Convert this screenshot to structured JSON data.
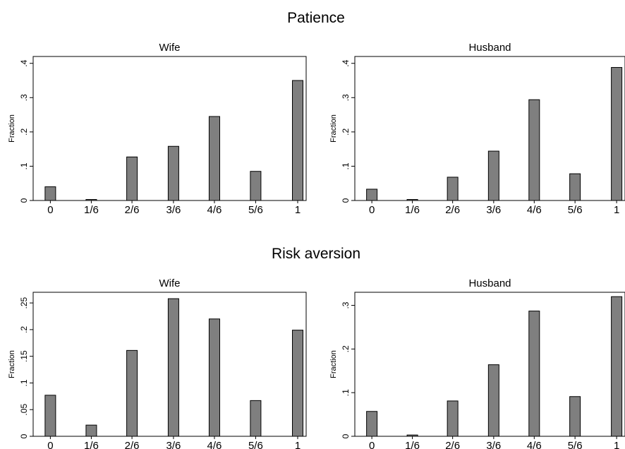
{
  "groups": [
    {
      "title": "Patience"
    },
    {
      "title": "Risk aversion"
    }
  ],
  "colors": {
    "bar_fill": "#7f7f7f",
    "bar_stroke": "#000000",
    "background": "#ffffff"
  },
  "chart_data": [
    {
      "type": "bar",
      "group": "Patience",
      "title": "Wife",
      "xlabel": "",
      "ylabel": "Fraction",
      "categories": [
        "0",
        "1/6",
        "2/6",
        "3/6",
        "4/6",
        "5/6",
        "1"
      ],
      "values": [
        0.04,
        0.003,
        0.127,
        0.158,
        0.245,
        0.085,
        0.35
      ],
      "ylim": [
        0,
        0.42
      ],
      "yticks": [
        0,
        0.1,
        0.2,
        0.3,
        0.4
      ],
      "ytick_labels": [
        "0",
        ".1",
        ".2",
        ".3",
        ".4"
      ],
      "grid": false,
      "legend": "none"
    },
    {
      "type": "bar",
      "group": "Patience",
      "title": "Husband",
      "xlabel": "",
      "ylabel": "Fraction",
      "categories": [
        "0",
        "1/6",
        "2/6",
        "3/6",
        "4/6",
        "5/6",
        "1"
      ],
      "values": [
        0.033,
        0.003,
        0.068,
        0.144,
        0.294,
        0.078,
        0.388
      ],
      "ylim": [
        0,
        0.42
      ],
      "yticks": [
        0,
        0.1,
        0.2,
        0.3,
        0.4
      ],
      "ytick_labels": [
        "0",
        ".1",
        ".2",
        ".3",
        ".4"
      ],
      "grid": false,
      "legend": "none"
    },
    {
      "type": "bar",
      "group": "Risk aversion",
      "title": "Wife",
      "xlabel": "",
      "ylabel": "Fraction",
      "categories": [
        "0",
        "1/6",
        "2/6",
        "3/6",
        "4/6",
        "5/6",
        "1"
      ],
      "values": [
        0.077,
        0.021,
        0.161,
        0.258,
        0.22,
        0.067,
        0.199
      ],
      "ylim": [
        0,
        0.27
      ],
      "yticks": [
        0,
        0.05,
        0.1,
        0.15,
        0.2,
        0.25
      ],
      "ytick_labels": [
        "0",
        ".05",
        ".1",
        ".15",
        ".2",
        ".25"
      ],
      "grid": false,
      "legend": "none"
    },
    {
      "type": "bar",
      "group": "Risk aversion",
      "title": "Husband",
      "xlabel": "",
      "ylabel": "Fraction",
      "categories": [
        "0",
        "1/6",
        "2/6",
        "3/6",
        "4/6",
        "5/6",
        "1"
      ],
      "values": [
        0.057,
        0.003,
        0.081,
        0.164,
        0.287,
        0.091,
        0.32
      ],
      "ylim": [
        0,
        0.33
      ],
      "yticks": [
        0,
        0.1,
        0.2,
        0.3
      ],
      "ytick_labels": [
        "0",
        ".1",
        ".2",
        ".3"
      ],
      "grid": false,
      "legend": "none"
    }
  ]
}
